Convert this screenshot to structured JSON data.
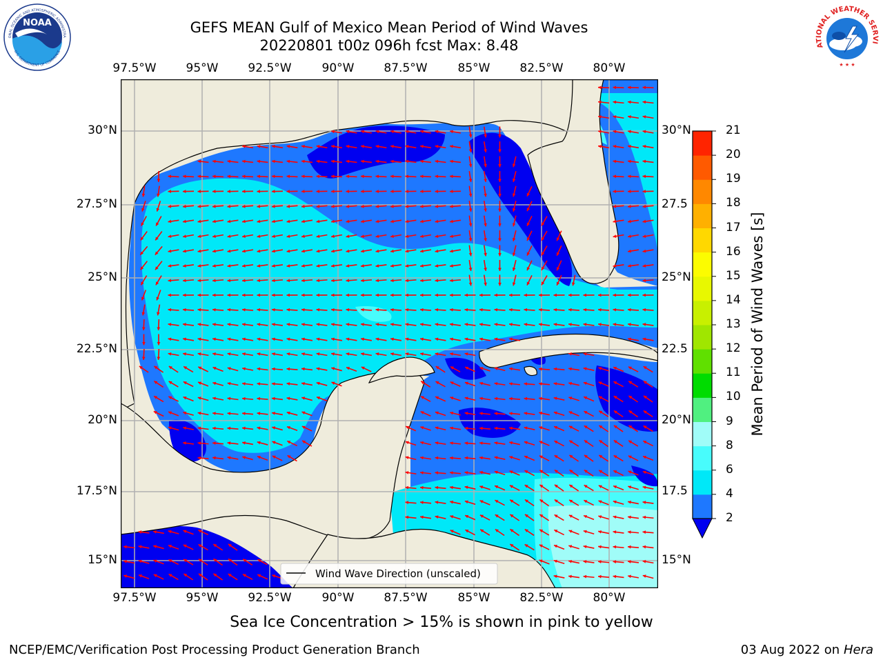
{
  "title": {
    "line1": "GEFS MEAN Gulf of Mexico Mean Period of Wind Waves",
    "line2": "20220801 t00z 096h fcst   Max: 8.48"
  },
  "logos": {
    "left": "NOAA",
    "left_ring_top": "NATIONAL OCEANIC AND ATMOSPHERIC ADMINISTRATION",
    "left_ring_bottom": "U.S. DEPARTMENT OF COMMERCE",
    "right_ring": "NATIONAL WEATHER SERVICE"
  },
  "map": {
    "lon_ticks": [
      "97.5°W",
      "95°W",
      "92.5°W",
      "90°W",
      "87.5°W",
      "85°W",
      "82.5°W",
      "80°W"
    ],
    "lat_ticks_left": [
      "30°N",
      "27.5°N",
      "25°N",
      "22.5°N",
      "20°N",
      "17.5°N",
      "15°N"
    ],
    "lat_ticks_right": [
      "30°N",
      "27.5",
      "25°N",
      "22.5",
      "20°N",
      "17.5",
      "15°N"
    ],
    "legend_label": "Wind Wave Direction (unscaled)",
    "colors": {
      "land": "#efecdc",
      "ocean_2_4": "#1e78ff",
      "ocean_lt2": "#0000f0",
      "ocean_4_6": "#00e8f8",
      "ocean_6_8": "#48fcfc",
      "ocean_8_9": "#a0fcf8",
      "arrow": "#ff0000",
      "grid": "#b0b0b0"
    }
  },
  "colorbar": {
    "label": "Mean Period of Wind Waves [s]",
    "ticks": [
      "2",
      "4",
      "6",
      "8",
      "9",
      "10",
      "11",
      "12",
      "13",
      "14",
      "15",
      "16",
      "17",
      "18",
      "19",
      "20",
      "21"
    ],
    "colors": [
      "#1e78ff",
      "#00e8f8",
      "#48fcfc",
      "#a0fcf8",
      "#50f080",
      "#00dc00",
      "#60e000",
      "#a0e600",
      "#c8f000",
      "#e8f800",
      "#fcfc00",
      "#ffd800",
      "#ffb000",
      "#ff8800",
      "#ff5a00",
      "#ff2400"
    ],
    "under_color": "#0000f0"
  },
  "footer": {
    "sea_ice": "Sea Ice Concentration > 15% is shown in pink to yellow",
    "credit": "NCEP/EMC/Verification Post Processing Product Generation Branch",
    "date": "03 Aug 2022 on",
    "machine": "Hera"
  }
}
